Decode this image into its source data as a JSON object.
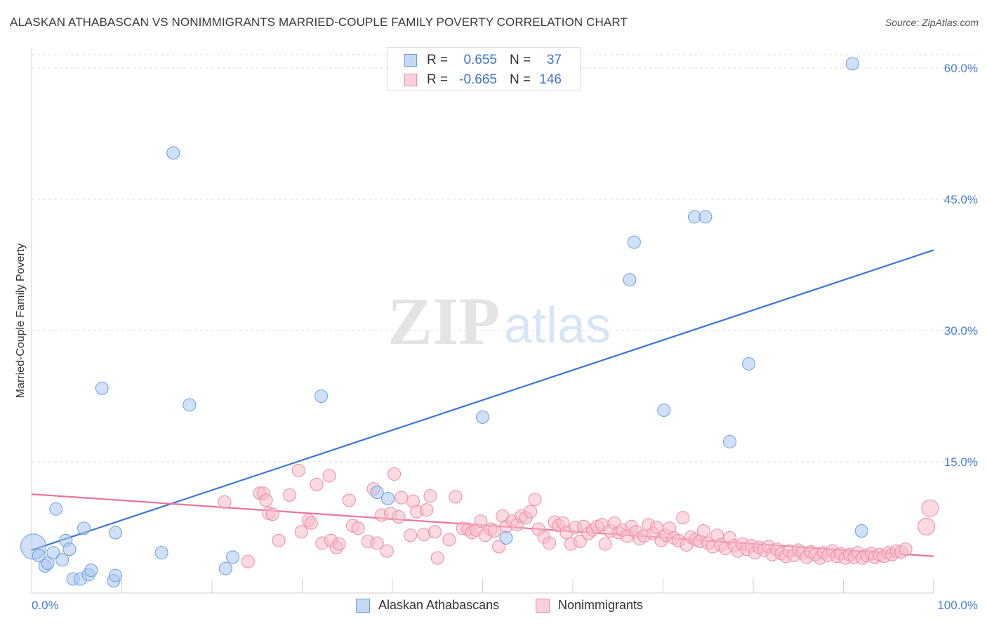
{
  "chart_data": {
    "type": "scatter",
    "title": "ALASKAN ATHABASCAN VS NONIMMIGRANTS MARRIED-COUPLE FAMILY POVERTY CORRELATION CHART",
    "source": "Source: ZipAtlas.com",
    "ylabel": "Married-Couple Family Poverty",
    "xlim": [
      0,
      100
    ],
    "ylim": [
      0,
      60
    ],
    "y_ticks": [
      15,
      30,
      45,
      60
    ],
    "y_tick_labels": [
      "15.0%",
      "30.0%",
      "45.0%",
      "60.0%"
    ],
    "x_tick_labels": [
      "0.0%",
      "100.0%"
    ],
    "watermark": {
      "part1": "ZIP",
      "part2": "atlas"
    },
    "legend": {
      "rows": [
        {
          "r_label": "R =",
          "r_value": "0.655",
          "n_label": "N =",
          "n_value": "37"
        },
        {
          "r_label": "R =",
          "r_value": "-0.665",
          "n_label": "N =",
          "n_value": "146"
        }
      ]
    },
    "series": [
      {
        "name": "Alaskan Athabascans",
        "color": "#a9c7ef",
        "stroke": "#6d9ee0",
        "line_color": "#3a78d0",
        "trend": {
          "x": [
            0,
            100
          ],
          "y": [
            4.9,
            39.2
          ]
        },
        "points": [
          [
            0.2,
            5.3,
            18
          ],
          [
            0.8,
            4.3,
            9
          ],
          [
            1.5,
            3.1,
            9
          ],
          [
            1.8,
            3.4,
            9
          ],
          [
            2.4,
            4.6,
            9
          ],
          [
            3.4,
            3.8,
            9
          ],
          [
            2.7,
            9.6,
            9
          ],
          [
            3.8,
            6.0,
            9
          ],
          [
            4.2,
            5.0,
            9
          ],
          [
            4.6,
            1.6,
            9
          ],
          [
            5.4,
            1.6,
            9
          ],
          [
            5.8,
            7.4,
            9
          ],
          [
            6.3,
            2.1,
            9
          ],
          [
            6.6,
            2.6,
            9
          ],
          [
            7.8,
            23.4,
            9
          ],
          [
            9.1,
            1.4,
            9
          ],
          [
            9.3,
            2.0,
            9
          ],
          [
            9.3,
            6.9,
            9
          ],
          [
            14.4,
            4.6,
            9
          ],
          [
            15.7,
            50.3,
            9
          ],
          [
            17.5,
            21.5,
            9
          ],
          [
            21.5,
            2.8,
            9
          ],
          [
            22.3,
            4.1,
            9
          ],
          [
            32.1,
            22.5,
            9
          ],
          [
            38.3,
            11.5,
            9
          ],
          [
            39.5,
            10.8,
            9
          ],
          [
            50.0,
            20.1,
            9
          ],
          [
            52.6,
            6.3,
            9
          ],
          [
            66.3,
            35.8,
            9
          ],
          [
            66.8,
            40.1,
            9
          ],
          [
            70.1,
            20.9,
            9
          ],
          [
            73.5,
            43.0,
            9
          ],
          [
            74.7,
            43.0,
            9
          ],
          [
            77.4,
            17.3,
            9
          ],
          [
            79.5,
            26.2,
            9
          ],
          [
            91.0,
            60.5,
            9
          ],
          [
            92.0,
            7.1,
            9
          ]
        ]
      },
      {
        "name": "Nonimmigrants",
        "color": "#f7bccb",
        "stroke": "#ee8aa6",
        "line_color": "#e8769b",
        "trend": {
          "x": [
            0,
            100
          ],
          "y": [
            11.3,
            4.2
          ]
        },
        "points": [
          [
            21.4,
            10.4,
            9
          ],
          [
            24.0,
            3.6,
            9
          ],
          [
            25.3,
            11.4,
            9
          ],
          [
            25.7,
            11.4,
            9
          ],
          [
            26.0,
            10.6,
            9
          ],
          [
            26.3,
            9.1,
            9
          ],
          [
            26.7,
            9.0,
            9
          ],
          [
            27.4,
            6.0,
            9
          ],
          [
            28.6,
            11.2,
            9
          ],
          [
            29.6,
            14.0,
            9
          ],
          [
            29.9,
            7.0,
            9
          ],
          [
            30.7,
            8.3,
            9
          ],
          [
            31.0,
            8.0,
            9
          ],
          [
            31.6,
            12.4,
            9
          ],
          [
            32.2,
            5.7,
            9
          ],
          [
            33.0,
            13.4,
            9
          ],
          [
            33.2,
            6.0,
            9
          ],
          [
            33.8,
            5.2,
            9
          ],
          [
            34.1,
            5.6,
            9
          ],
          [
            35.2,
            10.6,
            9
          ],
          [
            35.6,
            7.7,
            9
          ],
          [
            36.2,
            7.4,
            9
          ],
          [
            37.3,
            5.9,
            9
          ],
          [
            37.9,
            11.9,
            9
          ],
          [
            38.3,
            5.7,
            9
          ],
          [
            38.8,
            8.9,
            9
          ],
          [
            39.4,
            4.8,
            9
          ],
          [
            39.8,
            9.1,
            9
          ],
          [
            40.2,
            13.6,
            9
          ],
          [
            40.7,
            8.7,
            9
          ],
          [
            41.0,
            10.9,
            9
          ],
          [
            42.0,
            6.6,
            9
          ],
          [
            42.3,
            10.5,
            9
          ],
          [
            42.7,
            9.3,
            9
          ],
          [
            43.5,
            6.7,
            9
          ],
          [
            43.8,
            9.5,
            9
          ],
          [
            44.2,
            11.1,
            9
          ],
          [
            44.7,
            7.0,
            9
          ],
          [
            45.0,
            4.0,
            9
          ],
          [
            46.3,
            6.1,
            9
          ],
          [
            47.0,
            11.0,
            9
          ],
          [
            47.8,
            7.4,
            9
          ],
          [
            48.4,
            7.3,
            9
          ],
          [
            48.8,
            6.9,
            9
          ],
          [
            49.3,
            7.2,
            9
          ],
          [
            49.8,
            8.2,
            9
          ],
          [
            50.3,
            6.6,
            9
          ],
          [
            50.9,
            7.3,
            9
          ],
          [
            51.3,
            7.1,
            9
          ],
          [
            51.8,
            5.3,
            9
          ],
          [
            52.2,
            8.8,
            9
          ],
          [
            52.6,
            7.6,
            9
          ],
          [
            53.3,
            8.2,
            9
          ],
          [
            53.8,
            7.8,
            9
          ],
          [
            54.3,
            8.8,
            9
          ],
          [
            54.8,
            8.6,
            9
          ],
          [
            55.3,
            9.3,
            9
          ],
          [
            55.8,
            10.7,
            9
          ],
          [
            56.2,
            7.3,
            9
          ],
          [
            56.8,
            6.4,
            9
          ],
          [
            57.4,
            5.7,
            9
          ],
          [
            58.0,
            8.1,
            9
          ],
          [
            58.4,
            7.7,
            9
          ],
          [
            58.9,
            8.0,
            9
          ],
          [
            59.3,
            6.9,
            9
          ],
          [
            59.8,
            5.6,
            9
          ],
          [
            60.3,
            7.5,
            9
          ],
          [
            60.8,
            5.9,
            9
          ],
          [
            61.2,
            7.6,
            9
          ],
          [
            61.7,
            6.8,
            9
          ],
          [
            62.2,
            7.2,
            9
          ],
          [
            62.7,
            7.6,
            9
          ],
          [
            63.2,
            7.8,
            9
          ],
          [
            63.6,
            5.6,
            9
          ],
          [
            64.1,
            7.1,
            9
          ],
          [
            64.6,
            8.0,
            9
          ],
          [
            65.1,
            6.9,
            9
          ],
          [
            65.5,
            7.2,
            9
          ],
          [
            66.0,
            6.5,
            9
          ],
          [
            66.5,
            7.6,
            9
          ],
          [
            67.0,
            7.0,
            9
          ],
          [
            67.4,
            6.2,
            9
          ],
          [
            67.9,
            6.5,
            9
          ],
          [
            68.4,
            7.8,
            9
          ],
          [
            68.9,
            6.8,
            9
          ],
          [
            69.3,
            7.5,
            9
          ],
          [
            69.8,
            6.0,
            9
          ],
          [
            70.3,
            6.6,
            9
          ],
          [
            70.7,
            7.4,
            9
          ],
          [
            71.2,
            6.3,
            9
          ],
          [
            71.7,
            6.0,
            9
          ],
          [
            72.2,
            8.6,
            9
          ],
          [
            72.6,
            5.5,
            9
          ],
          [
            73.1,
            6.4,
            9
          ],
          [
            73.6,
            6.1,
            9
          ],
          [
            74.1,
            5.9,
            9
          ],
          [
            74.5,
            7.1,
            9
          ],
          [
            75.0,
            5.7,
            9
          ],
          [
            75.5,
            5.3,
            9
          ],
          [
            76.0,
            6.6,
            9
          ],
          [
            76.4,
            5.5,
            9
          ],
          [
            76.9,
            5.1,
            9
          ],
          [
            77.4,
            6.3,
            9
          ],
          [
            77.9,
            5.4,
            9
          ],
          [
            78.3,
            4.8,
            9
          ],
          [
            78.8,
            5.6,
            9
          ],
          [
            79.3,
            5.0,
            9
          ],
          [
            79.8,
            5.4,
            9
          ],
          [
            80.2,
            4.6,
            9
          ],
          [
            80.7,
            5.2,
            9
          ],
          [
            81.2,
            4.9,
            9
          ],
          [
            81.7,
            5.3,
            9
          ],
          [
            82.1,
            4.4,
            9
          ],
          [
            82.6,
            5.0,
            9
          ],
          [
            83.1,
            4.5,
            9
          ],
          [
            83.6,
            4.2,
            9
          ],
          [
            84.0,
            4.8,
            9
          ],
          [
            84.5,
            4.3,
            9
          ],
          [
            85.0,
            4.9,
            9
          ],
          [
            85.5,
            4.6,
            9
          ],
          [
            85.9,
            4.1,
            9
          ],
          [
            86.4,
            4.7,
            9
          ],
          [
            86.9,
            4.4,
            9
          ],
          [
            87.4,
            4.0,
            9
          ],
          [
            87.8,
            4.6,
            9
          ],
          [
            88.3,
            4.3,
            9
          ],
          [
            88.8,
            4.8,
            9
          ],
          [
            89.3,
            4.2,
            9
          ],
          [
            89.7,
            4.5,
            9
          ],
          [
            90.2,
            4.0,
            9
          ],
          [
            90.7,
            4.4,
            9
          ],
          [
            91.2,
            4.1,
            9
          ],
          [
            91.6,
            4.6,
            9
          ],
          [
            92.1,
            4.0,
            9
          ],
          [
            92.6,
            4.3,
            9
          ],
          [
            93.1,
            4.5,
            9
          ],
          [
            93.5,
            4.1,
            9
          ],
          [
            94.0,
            4.4,
            9
          ],
          [
            94.5,
            4.2,
            9
          ],
          [
            95.0,
            4.6,
            9
          ],
          [
            95.4,
            4.4,
            9
          ],
          [
            95.9,
            4.8,
            9
          ],
          [
            96.4,
            4.7,
            9
          ],
          [
            96.9,
            5.0,
            9
          ],
          [
            99.2,
            7.6,
            12
          ],
          [
            99.6,
            9.7,
            12
          ]
        ]
      }
    ]
  }
}
